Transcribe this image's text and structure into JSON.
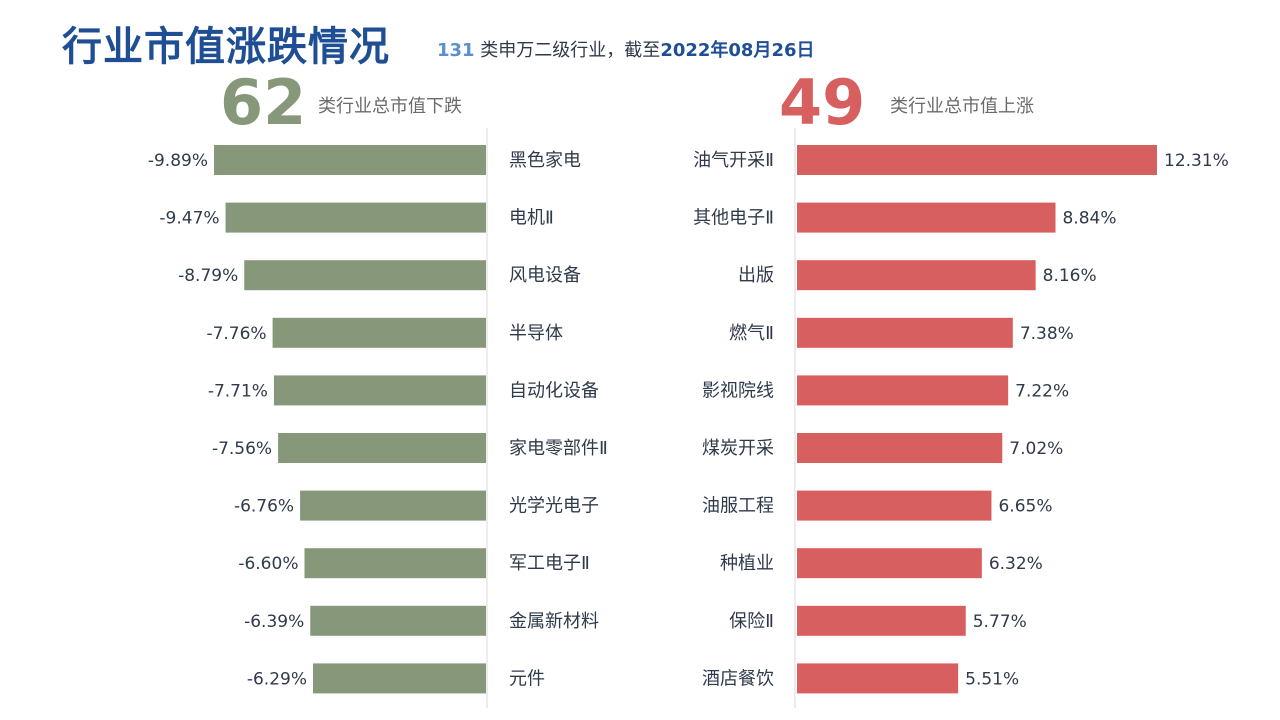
{
  "header": {
    "title": "行业市值涨跌情况",
    "subtitle_count": "131",
    "subtitle_text": " 类申万二级行业，截至",
    "subtitle_date": "2022年08月26日"
  },
  "summary": {
    "down_count": "62",
    "down_label": "类行业总市值下跌",
    "up_count": "49",
    "up_label": "类行业总市值上涨"
  },
  "colors": {
    "down": "#869879",
    "up": "#d85f5f",
    "title": "#1f4e94",
    "text": "#2f3a4a"
  },
  "chart_data": [
    {
      "type": "bar",
      "orientation": "horizontal",
      "direction": "down",
      "categories": [
        "黑色家电",
        "电机Ⅱ",
        "风电设备",
        "半导体",
        "自动化设备",
        "家电零部件Ⅱ",
        "光学光电子",
        "军工电子Ⅱ",
        "金属新材料",
        "元件"
      ],
      "values": [
        -9.89,
        -9.47,
        -8.79,
        -7.76,
        -7.71,
        -7.56,
        -6.76,
        -6.6,
        -6.39,
        -6.29
      ],
      "value_labels": [
        "-9.89%",
        "-9.47%",
        "-8.79%",
        "-7.76%",
        "-7.71%",
        "-7.56%",
        "-6.76%",
        "-6.60%",
        "-6.39%",
        "-6.29%"
      ],
      "unit": "%"
    },
    {
      "type": "bar",
      "orientation": "horizontal",
      "direction": "up",
      "categories": [
        "油气开采Ⅱ",
        "其他电子Ⅱ",
        "出版",
        "燃气Ⅱ",
        "影视院线",
        "煤炭开采",
        "油服工程",
        "种植业",
        "保险Ⅱ",
        "酒店餐饮"
      ],
      "values": [
        12.31,
        8.84,
        8.16,
        7.38,
        7.22,
        7.02,
        6.65,
        6.32,
        5.77,
        5.51
      ],
      "value_labels": [
        "12.31%",
        "8.84%",
        "8.16%",
        "7.38%",
        "7.22%",
        "7.02%",
        "6.65%",
        "6.32%",
        "5.77%",
        "5.51%"
      ],
      "unit": "%"
    }
  ]
}
